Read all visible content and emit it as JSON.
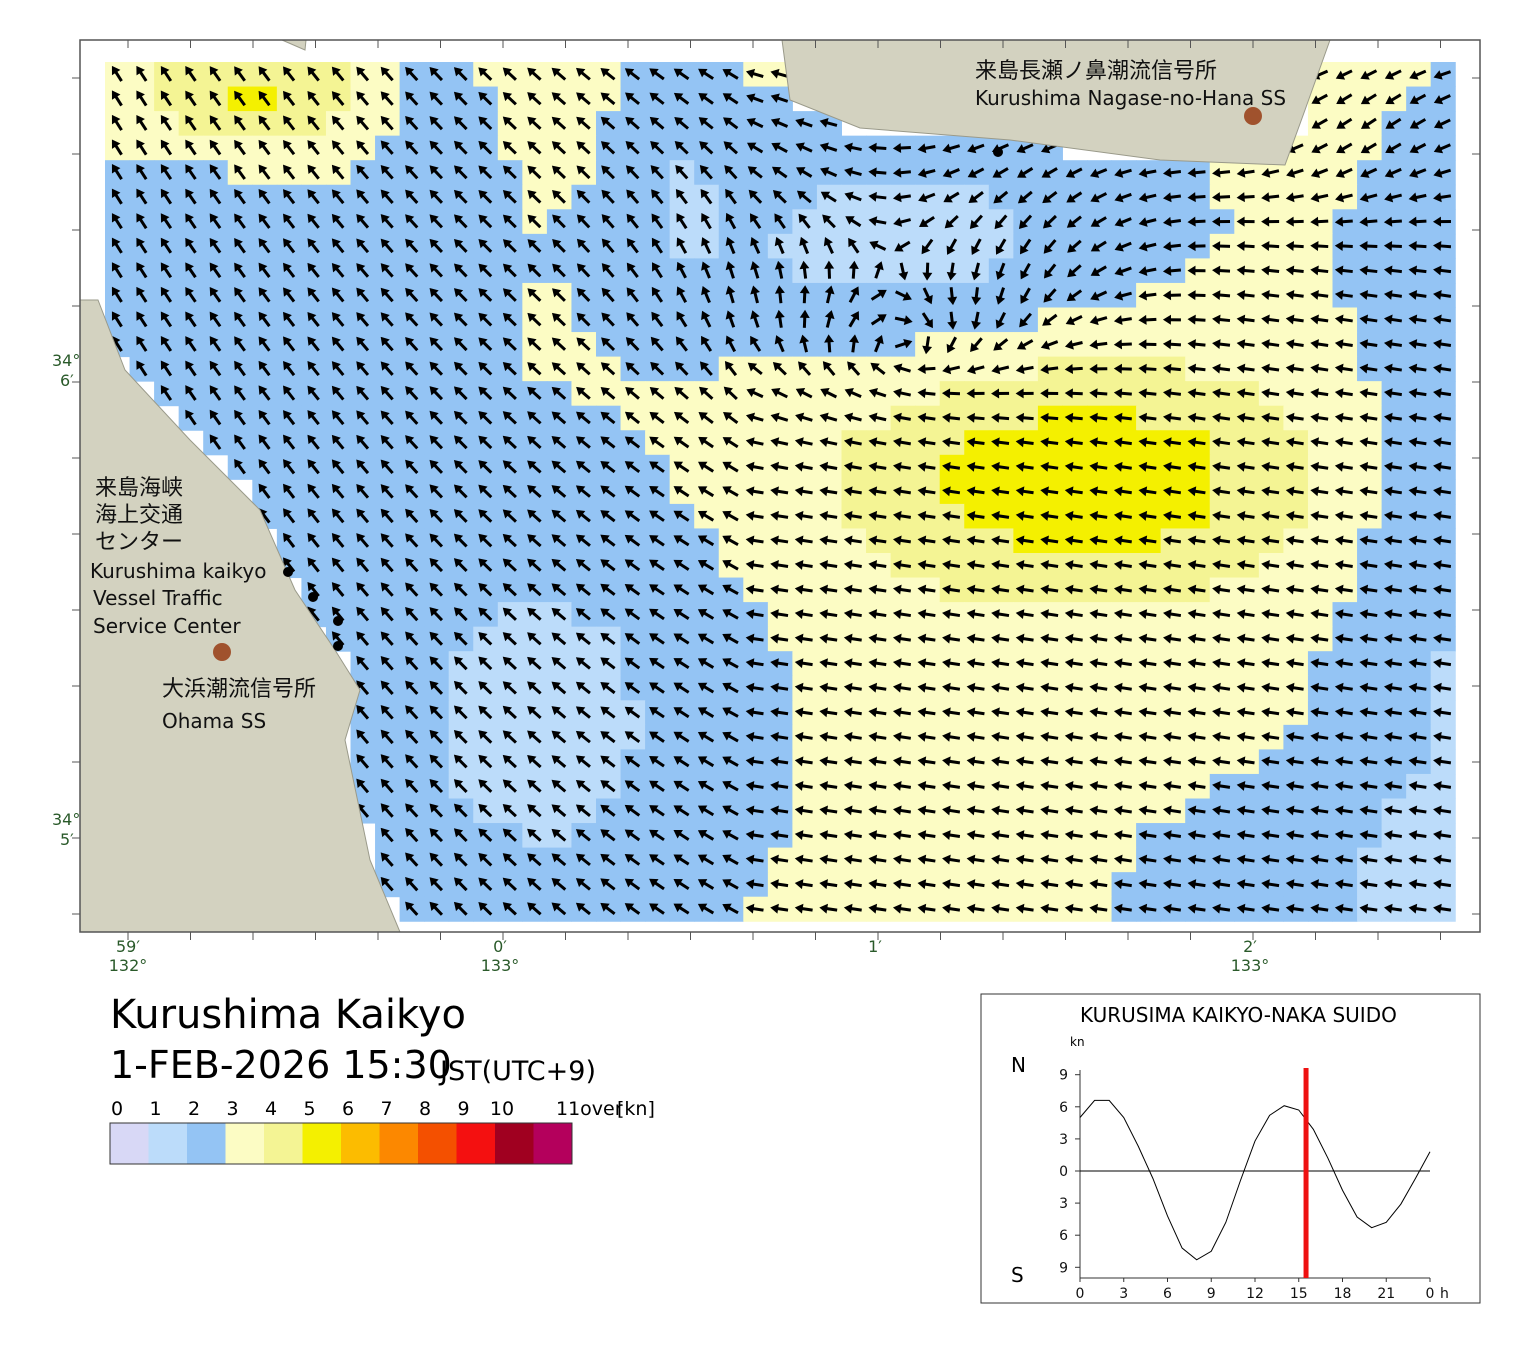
{
  "map": {
    "title": "Kurushima Kaikyo",
    "datetime": "1-FEB-2026 15:30",
    "timezone": "JST(UTC+9)",
    "stations": [
      {
        "name_ja": "来島長瀬ノ鼻潮流信号所",
        "name_en": "Kurushima Nagase-no-Hana SS"
      },
      {
        "name_ja": "大浜潮流信号所",
        "name_en": "Ohama SS"
      }
    ],
    "center": {
      "name_ja": [
        "来島海峡",
        "海上交通",
        "センター"
      ],
      "name_en": [
        "Kurushima kaikyo",
        "Vessel Traffic",
        "Service Center"
      ]
    },
    "lat_labels": [
      {
        "deg": "34°",
        "min": "6′"
      },
      {
        "deg": "34°",
        "min": "5′"
      }
    ],
    "lon_labels": [
      {
        "min": "59′",
        "deg": "132°"
      },
      {
        "min": "0′",
        "deg": "133°"
      },
      {
        "min": "1′"
      },
      {
        "min": "2′",
        "deg": "133°"
      }
    ],
    "colorbar": {
      "labels": [
        "0",
        "1",
        "2",
        "3",
        "4",
        "5",
        "6",
        "7",
        "8",
        "9",
        "10",
        "11over"
      ],
      "unit": "[kn]",
      "colors": [
        "#d8d8f6",
        "#bcdcfa",
        "#94c4f4",
        "#fcfcc4",
        "#f4f494",
        "#f4f000",
        "#fcbc00",
        "#fc8800",
        "#f45000",
        "#f41010",
        "#a00020",
        "#b4005c"
      ]
    }
  },
  "chart_data": {
    "type": "line",
    "title": "KURUSIMA KAIKYO-NAKA SUIDO",
    "unit": "kn",
    "north": "N",
    "south": "S",
    "color": "#000000",
    "x": [
      0,
      1,
      2,
      3,
      4,
      5,
      6,
      7,
      8,
      9,
      10,
      11,
      12,
      13,
      14,
      15,
      16,
      17,
      18,
      19,
      20,
      21,
      22,
      23,
      24
    ],
    "values": [
      5.0,
      6.6,
      6.6,
      5.0,
      2.3,
      -0.7,
      -4.2,
      -7.2,
      -8.3,
      -7.5,
      -4.8,
      -0.9,
      2.8,
      5.2,
      6.1,
      5.7,
      3.9,
      1.2,
      -1.8,
      -4.3,
      -5.3,
      -4.8,
      -3.1,
      -0.7,
      1.8
    ],
    "xlim": [
      0,
      24
    ],
    "xticks": [
      0,
      3,
      6,
      9,
      12,
      15,
      18,
      21,
      {
        "value": 24,
        "label": "0"
      }
    ],
    "xunit": "h",
    "ylim": [
      -10,
      10
    ],
    "yticks": [
      {
        "value": 9,
        "label": "9"
      },
      {
        "value": 6,
        "label": "6"
      },
      {
        "value": 3,
        "label": "3"
      },
      0,
      {
        "value": -3,
        "label": "3"
      },
      {
        "value": -6,
        "label": "6"
      },
      {
        "value": -9,
        "label": "9"
      }
    ],
    "current_time": 15.5,
    "current_color": "#ee1111"
  }
}
